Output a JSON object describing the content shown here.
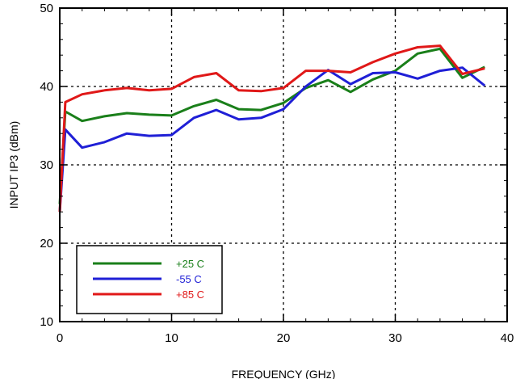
{
  "chart_data": {
    "type": "line",
    "xlabel": "FREQUENCY (GHz)",
    "ylabel": "INPUT IP3 (dBm)",
    "xlim": [
      0,
      40
    ],
    "ylim": [
      10,
      50
    ],
    "xticks": [
      "0",
      "10",
      "20",
      "30",
      "40"
    ],
    "yticks": [
      "10",
      "20",
      "30",
      "40",
      "50"
    ],
    "grid": "dashed at major ticks",
    "legend_position": "bottom-left",
    "series": [
      {
        "name": "+25 C",
        "color": "#1a7f1a",
        "x": [
          0,
          0.5,
          2,
          4,
          6,
          8,
          10,
          12,
          14,
          16,
          18,
          20,
          22,
          24,
          26,
          28,
          30,
          32,
          34,
          36,
          38
        ],
        "y": [
          25,
          36.8,
          35.6,
          36.2,
          36.6,
          36.4,
          36.3,
          37.5,
          38.3,
          37.1,
          37.0,
          37.9,
          39.8,
          40.8,
          39.3,
          40.9,
          42.0,
          44.2,
          44.8,
          41.1,
          42.5
        ]
      },
      {
        "name": "-55 C",
        "color": "#1f1fd6",
        "x": [
          0,
          0.5,
          2,
          4,
          6,
          8,
          10,
          12,
          14,
          16,
          18,
          20,
          22,
          24,
          26,
          28,
          30,
          32,
          34,
          36,
          38
        ],
        "y": [
          24,
          34.5,
          32.2,
          32.9,
          34.0,
          33.7,
          33.8,
          36.0,
          37.0,
          35.8,
          36.0,
          37.1,
          40.0,
          42.1,
          40.3,
          41.7,
          41.8,
          41.0,
          42.0,
          42.4,
          40.1
        ]
      },
      {
        "name": "+85 C",
        "color": "#e01818",
        "x": [
          0,
          0.5,
          2,
          4,
          6,
          8,
          10,
          12,
          14,
          16,
          18,
          20,
          22,
          24,
          26,
          28,
          30,
          32,
          34,
          36,
          38
        ],
        "y": [
          24,
          38.0,
          39.0,
          39.5,
          39.8,
          39.5,
          39.7,
          41.2,
          41.7,
          39.5,
          39.4,
          39.8,
          42.0,
          42.0,
          41.8,
          43.1,
          44.2,
          45.0,
          45.2,
          41.6,
          42.3
        ]
      }
    ]
  }
}
